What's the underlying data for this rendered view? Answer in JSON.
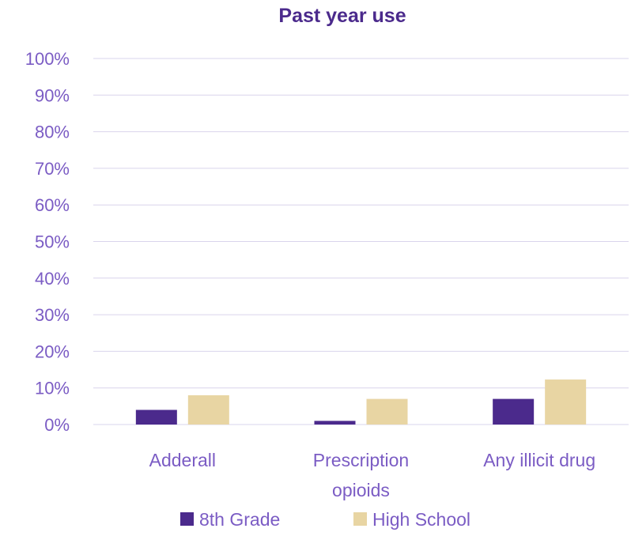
{
  "chart_data": {
    "type": "bar",
    "title": "Past year use",
    "categories": [
      "Adderall",
      "Prescription opioids",
      "Any illicit drug"
    ],
    "category_label_lines": [
      [
        "Adderall"
      ],
      [
        "Prescription",
        "opioids"
      ],
      [
        "Any illicit drug"
      ]
    ],
    "series": [
      {
        "name": "8th Grade",
        "values": [
          4,
          1,
          7
        ],
        "color": "#4B2A8C"
      },
      {
        "name": "High School",
        "values": [
          8,
          7,
          12.3
        ],
        "color": "#E8D5A3"
      }
    ],
    "ylim": [
      0,
      100
    ],
    "yticks": [
      0,
      10,
      20,
      30,
      40,
      50,
      60,
      70,
      80,
      90,
      100
    ],
    "ytick_labels": [
      "0%",
      "10%",
      "20%",
      "30%",
      "40%",
      "50%",
      "60%",
      "70%",
      "80%",
      "90%",
      "100%"
    ],
    "grid": true,
    "legend_position": "bottom",
    "colors": {
      "title": "#4B2A8C",
      "axis_text": "#7B5CC4",
      "gridline": "#D9D4EC",
      "axis_line": "#D9D4EC"
    }
  }
}
